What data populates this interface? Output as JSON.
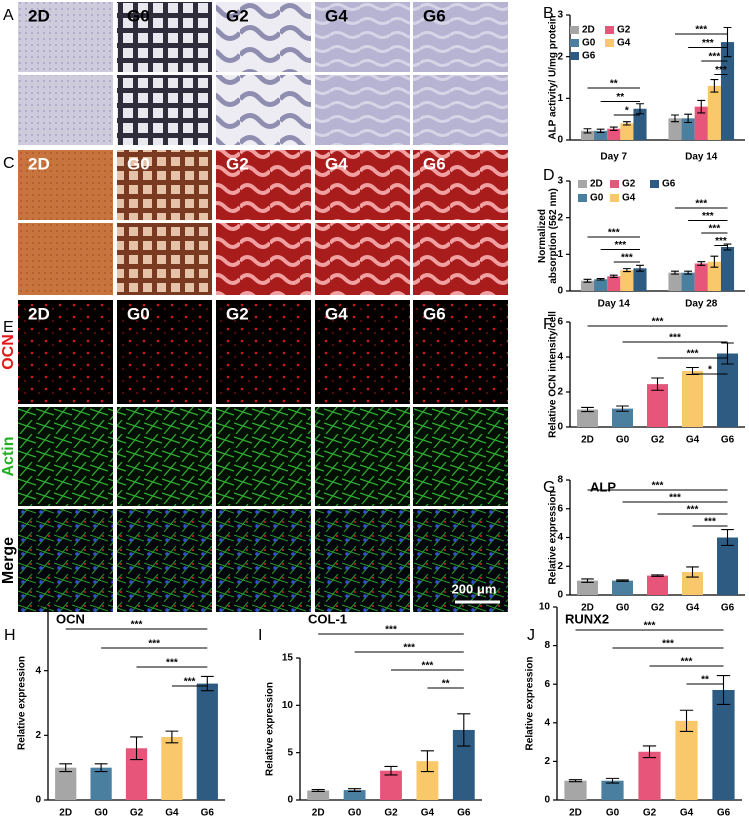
{
  "image_panels": [
    {
      "panel_label": "A",
      "columns": [
        "2D",
        "G0",
        "G2",
        "G4",
        "G6"
      ]
    },
    {
      "panel_label": "C",
      "columns": [
        "2D",
        "G0",
        "G2",
        "G4",
        "G6"
      ]
    },
    {
      "panel_label": "E",
      "columns": [
        "2D",
        "G0",
        "G2",
        "G4",
        "G6"
      ],
      "rows": [
        "OCN",
        "Actin",
        "Merge"
      ],
      "scale_bar": "200 μm"
    }
  ],
  "chart_data": [
    {
      "type": "grouped_bar",
      "panel_label": "B",
      "y_label": [
        "ALP activity/ U/mg protein"
      ],
      "categories": [
        "Day 7",
        "Day 14"
      ],
      "series": [
        {
          "name": "2D",
          "color": "#a6a6a6",
          "values": [
            0.22,
            0.52
          ],
          "errors": [
            0.05,
            0.08
          ]
        },
        {
          "name": "G0",
          "color": "#4a7fa0",
          "values": [
            0.22,
            0.52
          ],
          "errors": [
            0.04,
            0.1
          ]
        },
        {
          "name": "G2",
          "color": "#e8557a",
          "values": [
            0.27,
            0.8
          ],
          "errors": [
            0.04,
            0.15
          ]
        },
        {
          "name": "G4",
          "color": "#f9c86b",
          "values": [
            0.4,
            1.3
          ],
          "errors": [
            0.04,
            0.15
          ]
        },
        {
          "name": "G6",
          "color": "#2e5b82",
          "values": [
            0.75,
            2.35
          ],
          "errors": [
            0.12,
            0.35
          ]
        }
      ],
      "ylim": [
        0,
        3
      ],
      "yticks": [
        0,
        1,
        2,
        3
      ],
      "significance": [
        {
          "label": "**",
          "category": "Day 7",
          "between": [
            "2D",
            "G6"
          ]
        },
        {
          "label": "**",
          "category": "Day 7",
          "between": [
            "G0",
            "G6"
          ]
        },
        {
          "label": "*",
          "category": "Day 7",
          "between": [
            "G2",
            "G6"
          ]
        },
        {
          "label": "***",
          "category": "Day 14",
          "between": [
            "2D",
            "G6"
          ]
        },
        {
          "label": "***",
          "category": "Day 14",
          "between": [
            "G0",
            "G6"
          ]
        },
        {
          "label": "***",
          "category": "Day 14",
          "between": [
            "G2",
            "G6"
          ]
        },
        {
          "label": "***",
          "category": "Day 14",
          "between": [
            "G4",
            "G6"
          ]
        }
      ]
    },
    {
      "type": "grouped_bar",
      "panel_label": "D",
      "y_label": [
        "Normalized",
        "absorption (562 nm)"
      ],
      "categories": [
        "Day 14",
        "Day 28"
      ],
      "series": [
        {
          "name": "2D",
          "color": "#a6a6a6",
          "values": [
            0.28,
            0.5
          ],
          "errors": [
            0.04,
            0.04
          ]
        },
        {
          "name": "G0",
          "color": "#4a7fa0",
          "values": [
            0.32,
            0.5
          ],
          "errors": [
            0.02,
            0.04
          ]
        },
        {
          "name": "G2",
          "color": "#e8557a",
          "values": [
            0.4,
            0.75
          ],
          "errors": [
            0.03,
            0.05
          ]
        },
        {
          "name": "G4",
          "color": "#f9c86b",
          "values": [
            0.57,
            0.8
          ],
          "errors": [
            0.04,
            0.15
          ]
        },
        {
          "name": "G6",
          "color": "#2e5b82",
          "values": [
            0.62,
            1.2
          ],
          "errors": [
            0.08,
            0.08
          ]
        }
      ],
      "ylim": [
        0,
        3
      ],
      "yticks": [
        0,
        1,
        2,
        3
      ],
      "significance": [
        {
          "label": "***",
          "category": "Day 14",
          "between": [
            "2D",
            "G6"
          ]
        },
        {
          "label": "***",
          "category": "Day 14",
          "between": [
            "G0",
            "G6"
          ]
        },
        {
          "label": "***",
          "category": "Day 14",
          "between": [
            "G2",
            "G6"
          ]
        },
        {
          "label": "***",
          "category": "Day 28",
          "between": [
            "2D",
            "G6"
          ]
        },
        {
          "label": "***",
          "category": "Day 28",
          "between": [
            "G0",
            "G6"
          ]
        },
        {
          "label": "***",
          "category": "Day 28",
          "between": [
            "G2",
            "G6"
          ]
        },
        {
          "label": "***",
          "category": "Day 28",
          "between": [
            "G4",
            "G6"
          ]
        }
      ]
    },
    {
      "type": "bar",
      "panel_label": "F",
      "y_label": [
        "Relative OCN intensity/cell"
      ],
      "categories": [
        "2D",
        "G0",
        "G2",
        "G4",
        "G6"
      ],
      "values": [
        1.0,
        1.05,
        2.45,
        3.2,
        4.2
      ],
      "errors": [
        0.12,
        0.15,
        0.35,
        0.2,
        0.6
      ],
      "colors": [
        "#a6a6a6",
        "#4a7fa0",
        "#e8557a",
        "#f9c86b",
        "#2e5b82"
      ],
      "ylim": [
        0,
        6
      ],
      "yticks": [
        0,
        2,
        4,
        6
      ],
      "significance": [
        {
          "label": "***",
          "between": [
            "2D",
            "G6"
          ]
        },
        {
          "label": "***",
          "between": [
            "G0",
            "G6"
          ]
        },
        {
          "label": "***",
          "between": [
            "G2",
            "G6"
          ]
        },
        {
          "label": "*",
          "between": [
            "G4",
            "G6"
          ]
        }
      ]
    },
    {
      "type": "bar",
      "panel_label": "G",
      "title": "ALP",
      "y_label": [
        "Relative expression"
      ],
      "categories": [
        "2D",
        "G0",
        "G2",
        "G4",
        "G6"
      ],
      "values": [
        1.0,
        1.0,
        1.35,
        1.6,
        4.0
      ],
      "errors": [
        0.12,
        0.05,
        0.05,
        0.35,
        0.55
      ],
      "colors": [
        "#a6a6a6",
        "#4a7fa0",
        "#e8557a",
        "#f9c86b",
        "#2e5b82"
      ],
      "ylim": [
        0,
        8
      ],
      "yticks": [
        0,
        2,
        4,
        6,
        8
      ],
      "significance": [
        {
          "label": "***",
          "between": [
            "2D",
            "G6"
          ]
        },
        {
          "label": "***",
          "between": [
            "G0",
            "G6"
          ]
        },
        {
          "label": "***",
          "between": [
            "G2",
            "G6"
          ]
        },
        {
          "label": "***",
          "between": [
            "G4",
            "G6"
          ]
        }
      ]
    },
    {
      "type": "bar",
      "panel_label": "H",
      "title": "OCN",
      "y_label": [
        "Relative expression"
      ],
      "categories": [
        "2D",
        "G0",
        "G2",
        "G4",
        "G6"
      ],
      "values": [
        1.0,
        1.0,
        1.6,
        1.95,
        3.6
      ],
      "errors": [
        0.12,
        0.12,
        0.35,
        0.18,
        0.22
      ],
      "colors": [
        "#a6a6a6",
        "#4a7fa0",
        "#e8557a",
        "#f9c86b",
        "#2e5b82"
      ],
      "ylim": [
        0,
        6
      ],
      "yticks": [
        0,
        2,
        4,
        6
      ],
      "significance": [
        {
          "label": "***",
          "between": [
            "2D",
            "G6"
          ]
        },
        {
          "label": "***",
          "between": [
            "G0",
            "G6"
          ]
        },
        {
          "label": "***",
          "between": [
            "G2",
            "G6"
          ]
        },
        {
          "label": "***",
          "between": [
            "G4",
            "G6"
          ]
        }
      ]
    },
    {
      "type": "bar",
      "panel_label": "I",
      "title": "COL-1",
      "y_label": [
        "Relative expression"
      ],
      "categories": [
        "2D",
        "G0",
        "G2",
        "G4",
        "G6"
      ],
      "values": [
        1.0,
        1.05,
        3.1,
        4.1,
        7.4
      ],
      "errors": [
        0.1,
        0.15,
        0.45,
        1.1,
        1.7
      ],
      "colors": [
        "#a6a6a6",
        "#4a7fa0",
        "#e8557a",
        "#f9c86b",
        "#2e5b82"
      ],
      "ylim": [
        0,
        15
      ],
      "yticks": [
        0,
        5,
        10,
        15
      ],
      "significance": [
        {
          "label": "***",
          "between": [
            "2D",
            "G6"
          ]
        },
        {
          "label": "***",
          "between": [
            "G0",
            "G6"
          ]
        },
        {
          "label": "***",
          "between": [
            "G2",
            "G6"
          ]
        },
        {
          "label": "**",
          "between": [
            "G4",
            "G6"
          ]
        }
      ]
    },
    {
      "type": "bar",
      "panel_label": "J",
      "title": "RUNX2",
      "y_label": [
        "Relative expression"
      ],
      "categories": [
        "2D",
        "G0",
        "G2",
        "G4",
        "G6"
      ],
      "values": [
        1.0,
        1.0,
        2.5,
        4.1,
        5.7
      ],
      "errors": [
        0.05,
        0.12,
        0.3,
        0.55,
        0.75
      ],
      "colors": [
        "#a6a6a6",
        "#4a7fa0",
        "#e8557a",
        "#f9c86b",
        "#2e5b82"
      ],
      "ylim": [
        0,
        10
      ],
      "yticks": [
        0,
        2,
        4,
        6,
        8,
        10
      ],
      "significance": [
        {
          "label": "***",
          "between": [
            "2D",
            "G6"
          ]
        },
        {
          "label": "***",
          "between": [
            "G0",
            "G6"
          ]
        },
        {
          "label": "***",
          "between": [
            "G2",
            "G6"
          ]
        },
        {
          "label": "**",
          "between": [
            "G4",
            "G6"
          ]
        }
      ]
    }
  ]
}
